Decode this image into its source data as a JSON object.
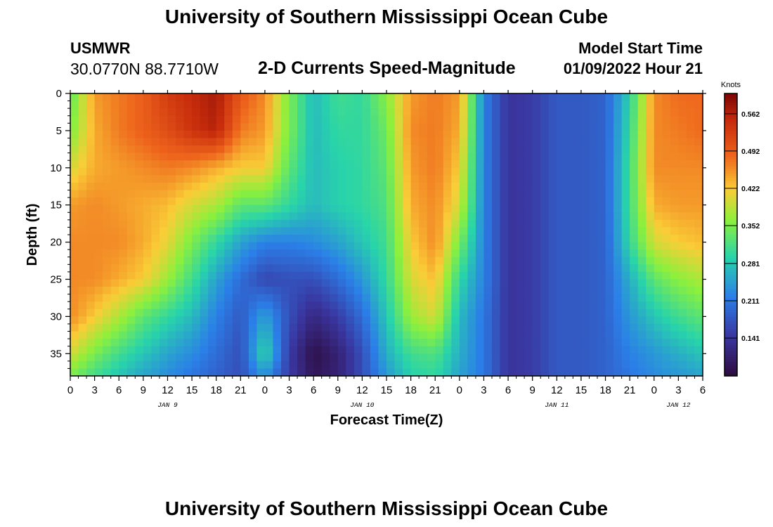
{
  "titles": {
    "top": "University of Southern Mississippi Ocean Cube",
    "bottom": "University of Southern Mississippi Ocean Cube"
  },
  "header": {
    "station": "USMWR",
    "coords": "30.0770N  88.7710W",
    "subtitle": "2-D Currents Speed-Magnitude",
    "model_start_label": "Model Start Time",
    "model_start_value": "01/09/2022 Hour 21"
  },
  "chart_data": {
    "type": "heatmap",
    "title": "2-D Currents Speed-Magnitude",
    "xlabel": "Forecast Time(Z)",
    "ylabel": "Depth (ft)",
    "x_ticks": [
      "0",
      "3",
      "6",
      "9",
      "12",
      "15",
      "18",
      "21",
      "0",
      "3",
      "6",
      "9",
      "12",
      "15",
      "18",
      "21",
      "0",
      "3",
      "6",
      "9",
      "12",
      "15",
      "18",
      "21",
      "0",
      "3",
      "6"
    ],
    "x_tick_hours": [
      0,
      3,
      6,
      9,
      12,
      15,
      18,
      21,
      24,
      27,
      30,
      33,
      36,
      39,
      42,
      45,
      48,
      51,
      54,
      57,
      60,
      63,
      66,
      69,
      72,
      75,
      78
    ],
    "day_labels": [
      {
        "label": "JAN 9",
        "hour": 12
      },
      {
        "label": "JAN 10",
        "hour": 36
      },
      {
        "label": "JAN 11",
        "hour": 60
      },
      {
        "label": "JAN 12",
        "hour": 75
      }
    ],
    "xlim": [
      0,
      78
    ],
    "y_ticks": [
      "0",
      "5",
      "10",
      "15",
      "20",
      "25",
      "30",
      "35"
    ],
    "y_tick_values": [
      0,
      5,
      10,
      15,
      20,
      25,
      30,
      35
    ],
    "ylim": [
      0,
      38
    ],
    "colorbar": {
      "unit": "Knots",
      "ticks": [
        "0.562",
        "0.492",
        "0.422",
        "0.352",
        "0.281",
        "0.211",
        "0.141"
      ],
      "tick_values": [
        0.562,
        0.492,
        0.422,
        0.352,
        0.281,
        0.211,
        0.141
      ],
      "range": [
        0.07,
        0.6
      ]
    },
    "field_grid": {
      "hours": [
        0,
        3,
        6,
        9,
        12,
        15,
        18,
        21,
        24,
        27,
        30,
        33,
        36,
        39,
        42,
        45,
        48,
        51,
        54,
        57,
        60,
        63,
        66,
        69,
        72,
        75,
        78
      ],
      "depths": [
        0,
        5,
        10,
        15,
        20,
        25,
        30,
        35,
        38
      ],
      "speed": [
        [
          0.33,
          0.45,
          0.47,
          0.49,
          0.53,
          0.55,
          0.57,
          0.5,
          0.46,
          0.35,
          0.27,
          0.31,
          0.3,
          0.36,
          0.45,
          0.47,
          0.45,
          0.22,
          0.14,
          0.15,
          0.18,
          0.18,
          0.19,
          0.29,
          0.46,
          0.48,
          0.48
        ],
        [
          0.35,
          0.44,
          0.47,
          0.49,
          0.51,
          0.54,
          0.56,
          0.47,
          0.45,
          0.35,
          0.27,
          0.3,
          0.3,
          0.34,
          0.46,
          0.47,
          0.44,
          0.22,
          0.14,
          0.15,
          0.18,
          0.18,
          0.19,
          0.3,
          0.46,
          0.47,
          0.48
        ],
        [
          0.4,
          0.44,
          0.45,
          0.46,
          0.47,
          0.46,
          0.44,
          0.42,
          0.42,
          0.33,
          0.27,
          0.29,
          0.3,
          0.33,
          0.45,
          0.47,
          0.42,
          0.22,
          0.14,
          0.15,
          0.18,
          0.18,
          0.19,
          0.31,
          0.46,
          0.46,
          0.46
        ],
        [
          0.45,
          0.46,
          0.45,
          0.44,
          0.43,
          0.4,
          0.38,
          0.33,
          0.33,
          0.3,
          0.27,
          0.29,
          0.3,
          0.32,
          0.44,
          0.46,
          0.4,
          0.22,
          0.14,
          0.15,
          0.18,
          0.18,
          0.19,
          0.31,
          0.44,
          0.45,
          0.45
        ],
        [
          0.46,
          0.46,
          0.46,
          0.44,
          0.41,
          0.35,
          0.3,
          0.25,
          0.22,
          0.22,
          0.23,
          0.25,
          0.28,
          0.31,
          0.42,
          0.46,
          0.35,
          0.22,
          0.14,
          0.15,
          0.18,
          0.18,
          0.19,
          0.3,
          0.4,
          0.42,
          0.43
        ],
        [
          0.46,
          0.46,
          0.44,
          0.42,
          0.37,
          0.31,
          0.25,
          0.2,
          0.16,
          0.17,
          0.17,
          0.2,
          0.24,
          0.3,
          0.4,
          0.43,
          0.3,
          0.22,
          0.14,
          0.15,
          0.18,
          0.18,
          0.19,
          0.26,
          0.33,
          0.36,
          0.38
        ],
        [
          0.46,
          0.42,
          0.38,
          0.33,
          0.3,
          0.27,
          0.22,
          0.18,
          0.25,
          0.17,
          0.12,
          0.15,
          0.2,
          0.28,
          0.37,
          0.4,
          0.27,
          0.21,
          0.14,
          0.15,
          0.18,
          0.18,
          0.19,
          0.24,
          0.28,
          0.31,
          0.33
        ],
        [
          0.4,
          0.35,
          0.31,
          0.28,
          0.25,
          0.23,
          0.2,
          0.17,
          0.3,
          0.15,
          0.08,
          0.11,
          0.17,
          0.26,
          0.31,
          0.32,
          0.26,
          0.21,
          0.14,
          0.15,
          0.18,
          0.18,
          0.19,
          0.22,
          0.24,
          0.26,
          0.28
        ],
        [
          0.35,
          0.31,
          0.28,
          0.25,
          0.23,
          0.21,
          0.19,
          0.17,
          0.24,
          0.15,
          0.09,
          0.11,
          0.17,
          0.24,
          0.29,
          0.3,
          0.25,
          0.21,
          0.14,
          0.15,
          0.18,
          0.18,
          0.19,
          0.21,
          0.23,
          0.24,
          0.25
        ]
      ]
    }
  }
}
